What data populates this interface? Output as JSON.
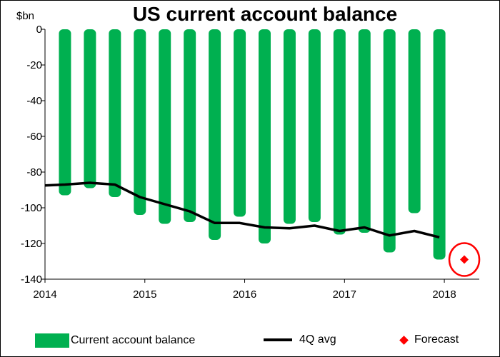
{
  "chart_data": {
    "type": "bar",
    "title": "US current account balance",
    "ylabel": "$bn",
    "ylim": [
      -140,
      0
    ],
    "yticks": [
      0,
      -20,
      -40,
      -60,
      -80,
      -100,
      -120,
      -140
    ],
    "xlim": [
      2014,
      2018.35
    ],
    "xticks": [
      "2014",
      "2015",
      "2016",
      "2017",
      "2018"
    ],
    "grid": false,
    "legend_position": "bottom",
    "colors": {
      "bars": "#00b050",
      "line": "#000000",
      "forecast": "#ff0000"
    },
    "series": [
      {
        "name": "Current account balance",
        "type": "bar",
        "x": [
          2014.2,
          2014.45,
          2014.7,
          2014.95,
          2015.2,
          2015.45,
          2015.7,
          2015.95,
          2016.2,
          2016.45,
          2016.7,
          2016.95,
          2017.2,
          2017.45,
          2017.7,
          2017.95
        ],
        "values": [
          -93,
          -89,
          -94,
          -104,
          -109,
          -108,
          -118,
          -105,
          -120,
          -109,
          -108,
          -115,
          -114,
          -125,
          -103,
          -129
        ]
      },
      {
        "name": "4Q avg",
        "type": "line",
        "x": [
          2014.0,
          2014.2,
          2014.45,
          2014.7,
          2014.95,
          2015.2,
          2015.45,
          2015.7,
          2015.95,
          2016.2,
          2016.45,
          2016.7,
          2016.95,
          2017.2,
          2017.45,
          2017.7,
          2017.95
        ],
        "values": [
          -87.5,
          -87,
          -86,
          -87,
          -94,
          -98,
          -102,
          -108.5,
          -108.5,
          -111,
          -111.5,
          -110,
          -113,
          -111,
          -115.5,
          -113,
          -116.5
        ]
      },
      {
        "name": "Forecast",
        "type": "scatter",
        "x": [
          2018.2
        ],
        "values": [
          -129
        ]
      }
    ]
  }
}
